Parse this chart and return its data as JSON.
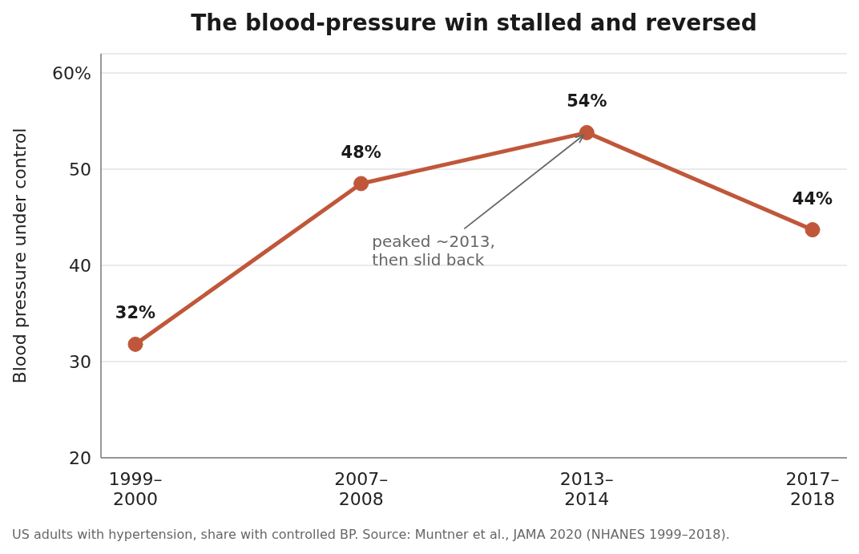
{
  "chart_data": {
    "type": "line",
    "title": "The blood-pressure win stalled and reversed",
    "ylabel": "Blood pressure under control",
    "categories": [
      "1999–2000",
      "2007–2008",
      "2013–2014",
      "2017–2018"
    ],
    "series": [
      {
        "color": "#c0573a",
        "values": [
          31.8,
          48.5,
          53.8,
          43.7
        ],
        "value_labels": [
          "32%",
          "48%",
          "54%",
          "44%"
        ]
      }
    ],
    "ylim": [
      20,
      62
    ],
    "yticks": [
      20,
      30,
      40,
      50,
      {
        "value": 60,
        "label": "60%"
      }
    ],
    "grid": "y",
    "marker": "circle",
    "line_style": "solid",
    "annotations": [
      {
        "text": "peaked ~2013, then slid back",
        "x": "2013–2014",
        "y": 53.8
      },
      "US adults with hypertension, share with controlled BP. Source: Muntner et al., JAMA 2020 (NHANES 1999–2018)."
    ]
  }
}
